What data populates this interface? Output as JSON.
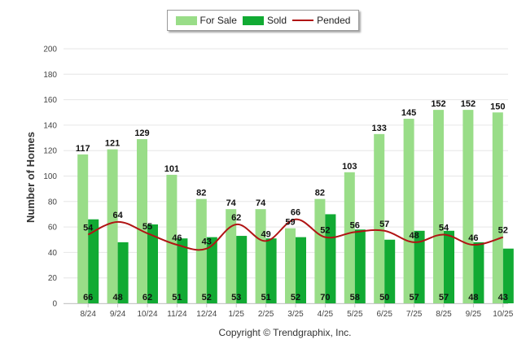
{
  "chart_data": {
    "type": "bar",
    "title": "",
    "xlabel": "",
    "ylabel": "Number of Homes",
    "ylim": [
      0,
      200
    ],
    "yticks": [
      0,
      20,
      40,
      60,
      80,
      100,
      120,
      140,
      160,
      180,
      200
    ],
    "grid": true,
    "legend_position": "top-center",
    "categories": [
      "8/24",
      "9/24",
      "10/24",
      "11/24",
      "12/24",
      "1/25",
      "2/25",
      "3/25",
      "4/25",
      "5/25",
      "6/25",
      "7/25",
      "8/25",
      "9/25",
      "10/25"
    ],
    "series": [
      {
        "name": "For Sale",
        "kind": "bar",
        "color": "#99dd88",
        "values": [
          117,
          121,
          129,
          101,
          82,
          74,
          74,
          59,
          82,
          103,
          133,
          145,
          152,
          152,
          150
        ]
      },
      {
        "name": "Sold",
        "kind": "bar",
        "color": "#11aa33",
        "values": [
          66,
          48,
          62,
          51,
          52,
          53,
          51,
          52,
          70,
          58,
          50,
          57,
          57,
          48,
          43
        ]
      },
      {
        "name": "Pended",
        "kind": "line",
        "color": "#b01414",
        "values": [
          54,
          64,
          55,
          46,
          43,
          62,
          49,
          66,
          52,
          56,
          57,
          48,
          54,
          46,
          52
        ]
      }
    ]
  },
  "footer": {
    "copyright": "Copyright © Trendgraphix, Inc."
  }
}
